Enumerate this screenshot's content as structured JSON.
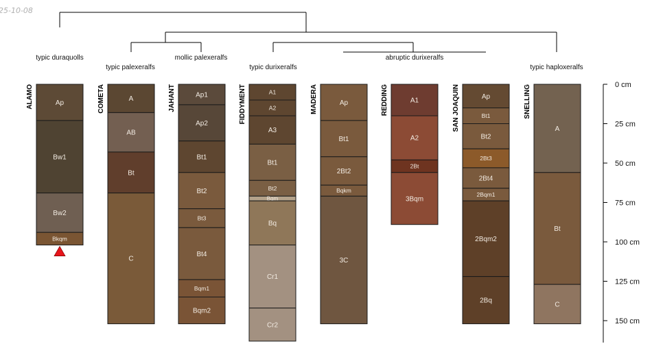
{
  "date_label": "25-10-08",
  "groups": [
    {
      "label": "typic duraquolls"
    },
    {
      "label": "typic palexeralfs"
    },
    {
      "label": "mollic palexeralfs"
    },
    {
      "label": "typic durixeralfs"
    },
    {
      "label": "abruptic durixeralfs"
    },
    {
      "label": "typic haploxeralfs"
    }
  ],
  "depth_axis": {
    "unit": "cm",
    "ticks": [
      "0 cm",
      "25 cm",
      "50 cm",
      "75 cm",
      "100 cm",
      "125 cm",
      "150 cm"
    ]
  },
  "profiles": [
    {
      "name": "ALAMO",
      "bottom_marker": "red-triangle",
      "horizons": [
        {
          "name": "Ap",
          "top": 0,
          "bottom": 23,
          "color": "#5d4a36"
        },
        {
          "name": "Bw1",
          "top": 23,
          "bottom": 69,
          "color": "#4f4332"
        },
        {
          "name": "Bw2",
          "top": 69,
          "bottom": 94,
          "color": "#6f5f52"
        },
        {
          "name": "Bkqm",
          "top": 94,
          "bottom": 102,
          "color": "#7a5533"
        }
      ]
    },
    {
      "name": "COMETA",
      "horizons": [
        {
          "name": "A",
          "top": 0,
          "bottom": 18,
          "color": "#5b4732"
        },
        {
          "name": "AB",
          "top": 18,
          "bottom": 43,
          "color": "#735f51"
        },
        {
          "name": "Bt",
          "top": 43,
          "bottom": 69,
          "color": "#603e2c"
        },
        {
          "name": "C",
          "top": 69,
          "bottom": 152,
          "color": "#7a5a39"
        }
      ]
    },
    {
      "name": "JAHANT",
      "horizons": [
        {
          "name": "Ap1",
          "top": 0,
          "bottom": 13,
          "color": "#5b4a3b"
        },
        {
          "name": "Ap2",
          "top": 13,
          "bottom": 36,
          "color": "#574738"
        },
        {
          "name": "Bt1",
          "top": 36,
          "bottom": 56,
          "color": "#5e4630"
        },
        {
          "name": "Bt2",
          "top": 56,
          "bottom": 79,
          "color": "#7a5a3d"
        },
        {
          "name": "Bt3",
          "top": 79,
          "bottom": 91,
          "color": "#7a5a3d"
        },
        {
          "name": "Bt4",
          "top": 91,
          "bottom": 124,
          "color": "#7a5a3d"
        },
        {
          "name": "Bqm1",
          "top": 124,
          "bottom": 135,
          "color": "#7a5436"
        },
        {
          "name": "Bqm2",
          "top": 135,
          "bottom": 152,
          "color": "#7a5436"
        }
      ]
    },
    {
      "name": "FIDDYMENT",
      "horizons": [
        {
          "name": "A1",
          "top": 0,
          "bottom": 10,
          "color": "#5e4630"
        },
        {
          "name": "A2",
          "top": 10,
          "bottom": 20,
          "color": "#5e4630"
        },
        {
          "name": "A3",
          "top": 20,
          "bottom": 38,
          "color": "#5e4630"
        },
        {
          "name": "Bt1",
          "top": 38,
          "bottom": 61,
          "color": "#7a5f44"
        },
        {
          "name": "Bt2",
          "top": 61,
          "bottom": 71,
          "color": "#7a5f44"
        },
        {
          "name": "Bqm",
          "top": 71,
          "bottom": 74,
          "color": "#b4a28a"
        },
        {
          "name": "Bq",
          "top": 74,
          "bottom": 102,
          "color": "#8f7759"
        },
        {
          "name": "Cr1",
          "top": 102,
          "bottom": 142,
          "color": "#a39181"
        },
        {
          "name": "Cr2",
          "top": 142,
          "bottom": 163,
          "color": "#a39181"
        }
      ]
    },
    {
      "name": "MADERA",
      "horizons": [
        {
          "name": "Ap",
          "top": 0,
          "bottom": 23,
          "color": "#7a5a3d"
        },
        {
          "name": "Bt1",
          "top": 23,
          "bottom": 46,
          "color": "#7a5a3d"
        },
        {
          "name": "2Bt2",
          "top": 46,
          "bottom": 64,
          "color": "#7a5a3d"
        },
        {
          "name": "Bqkm",
          "top": 64,
          "bottom": 71,
          "color": "#7a5a3d"
        },
        {
          "name": "3C",
          "top": 71,
          "bottom": 152,
          "color": "#6f5640"
        }
      ]
    },
    {
      "name": "REDDING",
      "horizons": [
        {
          "name": "A1",
          "top": 0,
          "bottom": 20,
          "color": "#6e3c30"
        },
        {
          "name": "A2",
          "top": 20,
          "bottom": 48,
          "color": "#8c4b35"
        },
        {
          "name": "2Bt",
          "top": 48,
          "bottom": 56,
          "color": "#6e3420"
        },
        {
          "name": "3Bqm",
          "top": 56,
          "bottom": 89,
          "color": "#8c4b35"
        }
      ]
    },
    {
      "name": "SAN JOAQUIN",
      "horizons": [
        {
          "name": "Ap",
          "top": 0,
          "bottom": 15,
          "color": "#644a32"
        },
        {
          "name": "Bt1",
          "top": 15,
          "bottom": 25,
          "color": "#7a5a3d"
        },
        {
          "name": "Bt2",
          "top": 25,
          "bottom": 41,
          "color": "#7a5a3d"
        },
        {
          "name": "2Bt3",
          "top": 41,
          "bottom": 53,
          "color": "#8c5a2a"
        },
        {
          "name": "2Bt4",
          "top": 53,
          "bottom": 66,
          "color": "#7a5a3d"
        },
        {
          "name": "2Bqm1",
          "top": 66,
          "bottom": 74,
          "color": "#7a5a3d"
        },
        {
          "name": "2Bqm2",
          "top": 74,
          "bottom": 122,
          "color": "#5e4028"
        },
        {
          "name": "2Bq",
          "top": 122,
          "bottom": 152,
          "color": "#5e4028"
        }
      ]
    },
    {
      "name": "SNELLING",
      "horizons": [
        {
          "name": "A",
          "top": 0,
          "bottom": 56,
          "color": "#736250"
        },
        {
          "name": "Bt",
          "top": 56,
          "bottom": 127,
          "color": "#7a5a3d"
        },
        {
          "name": "C",
          "top": 127,
          "bottom": 152,
          "color": "#8f7560"
        }
      ]
    }
  ]
}
